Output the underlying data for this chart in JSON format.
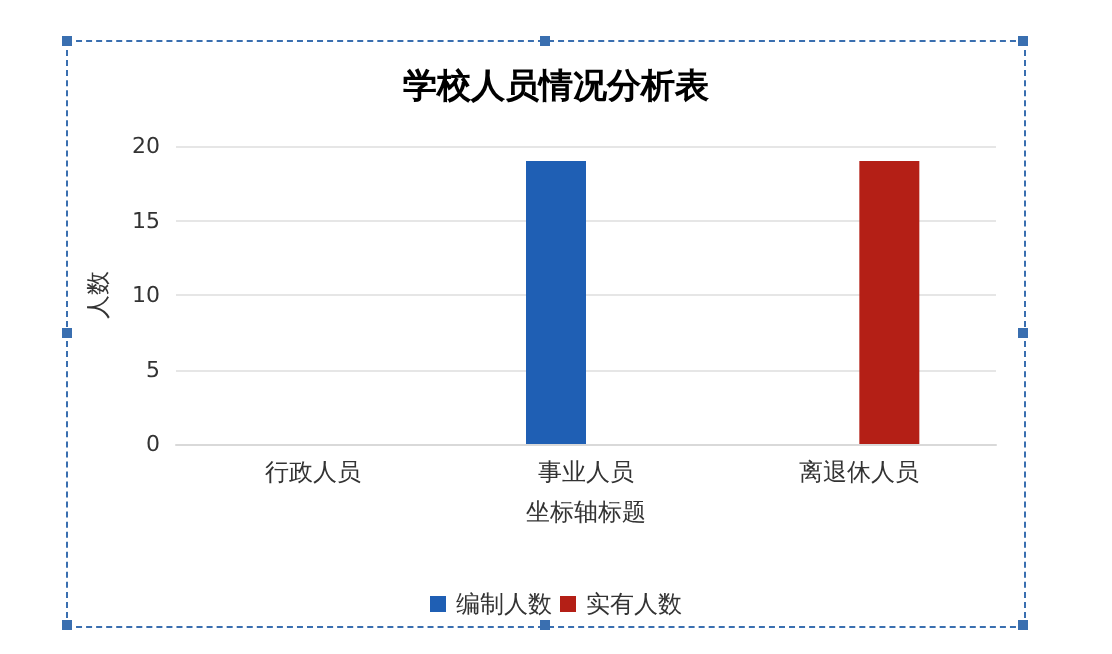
{
  "chart_data": {
    "type": "bar",
    "title": "学校人员情况分析表",
    "xlabel": "坐标轴标题",
    "ylabel": "人数",
    "categories": [
      "行政人员",
      "事业人员",
      "离退休人员"
    ],
    "series": [
      {
        "name": "编制人数",
        "color": "#1f5fb4",
        "values": [
          0,
          19,
          0
        ]
      },
      {
        "name": "实有人数",
        "color": "#b41f16",
        "values": [
          0,
          0,
          19
        ]
      }
    ],
    "ylim": [
      0,
      20
    ],
    "yticks": [
      0,
      5,
      10,
      15,
      20
    ],
    "grid": "y",
    "legend": "bottom"
  }
}
